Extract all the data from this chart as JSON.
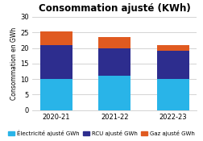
{
  "title": "Consommation ajusté (KWh)",
  "ylabel": "Consommation en GWh",
  "categories": [
    "2020-21",
    "2021-22",
    "2022-23"
  ],
  "electricite": [
    10.0,
    11.0,
    10.0
  ],
  "rcu": [
    11.0,
    9.0,
    9.0
  ],
  "gaz": [
    4.3,
    3.5,
    2.0
  ],
  "colors": {
    "electricite": "#29b4e8",
    "rcu": "#2d2d8e",
    "gaz": "#e05a20"
  },
  "ylim": [
    0,
    30
  ],
  "yticks": [
    0,
    5,
    10,
    15,
    20,
    25,
    30
  ],
  "legend_labels": [
    "Électricité ajusté GWh",
    "RCU ajusté GWh",
    "Gaz ajusté GWh"
  ],
  "background_color": "#ffffff",
  "title_fontsize": 8.5,
  "label_fontsize": 5.5,
  "tick_fontsize": 6,
  "legend_fontsize": 5,
  "bar_width": 0.55
}
